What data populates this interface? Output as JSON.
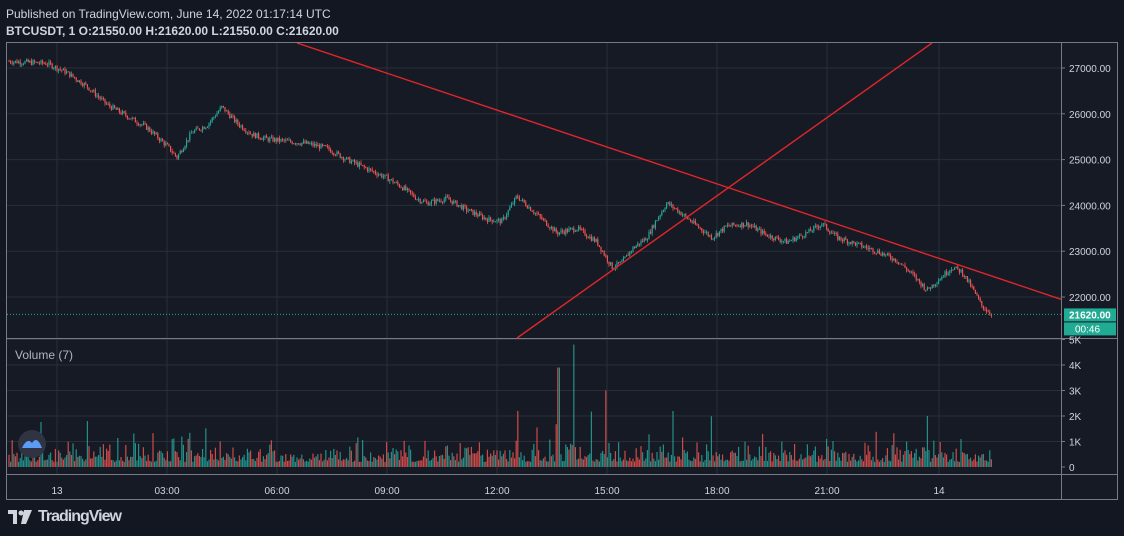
{
  "header": {
    "published": "Published on TradingView.com, June 14, 2022 01:17:14 UTC",
    "symbol_line": "BTCUSDT, 1 O:21550.00 H:21620.00 L:21550.00 C:21620.00"
  },
  "footer": {
    "brand": "TradingView"
  },
  "colors": {
    "up": "#26a69a",
    "down": "#ef5350",
    "trendline": "#e0262a",
    "price_tag": "#22ab94",
    "grid": "#2a2e39",
    "background": "#131722"
  },
  "chart_data": [
    {
      "type": "candlestick",
      "title": "",
      "interval": "1",
      "symbol": "BTCUSDT",
      "x_ticks": [
        "13",
        "03:00",
        "06:00",
        "09:00",
        "12:00",
        "15:00",
        "18:00",
        "21:00",
        "14"
      ],
      "y_ticks": [
        "27000.00",
        "26000.00",
        "25000.00",
        "24000.00",
        "23000.00",
        "22000.00"
      ],
      "ylim": [
        21350,
        27600
      ],
      "last_price": "21620.00",
      "countdown": "00:46",
      "close_path": [
        [
          0,
          27150
        ],
        [
          40,
          27100
        ],
        [
          60,
          26900
        ],
        [
          80,
          26600
        ],
        [
          100,
          26200
        ],
        [
          120,
          25950
        ],
        [
          140,
          25700
        ],
        [
          160,
          25300
        ],
        [
          170,
          25050
        ],
        [
          185,
          25600
        ],
        [
          200,
          25750
        ],
        [
          215,
          26150
        ],
        [
          230,
          25800
        ],
        [
          245,
          25550
        ],
        [
          260,
          25450
        ],
        [
          280,
          25400
        ],
        [
          300,
          25350
        ],
        [
          320,
          25250
        ],
        [
          340,
          25000
        ],
        [
          360,
          24800
        ],
        [
          380,
          24600
        ],
        [
          395,
          24400
        ],
        [
          410,
          24150
        ],
        [
          420,
          24050
        ],
        [
          440,
          24150
        ],
        [
          460,
          23900
        ],
        [
          480,
          23700
        ],
        [
          495,
          23650
        ],
        [
          510,
          24200
        ],
        [
          530,
          23800
        ],
        [
          550,
          23400
        ],
        [
          570,
          23500
        ],
        [
          590,
          23200
        ],
        [
          605,
          22650
        ],
        [
          615,
          22750
        ],
        [
          625,
          23050
        ],
        [
          640,
          23300
        ],
        [
          650,
          23700
        ],
        [
          660,
          24050
        ],
        [
          670,
          23900
        ],
        [
          690,
          23550
        ],
        [
          705,
          23300
        ],
        [
          720,
          23550
        ],
        [
          740,
          23600
        ],
        [
          760,
          23350
        ],
        [
          780,
          23200
        ],
        [
          800,
          23400
        ],
        [
          815,
          23600
        ],
        [
          830,
          23300
        ],
        [
          850,
          23150
        ],
        [
          870,
          23000
        ],
        [
          890,
          22800
        ],
        [
          905,
          22500
        ],
        [
          920,
          22150
        ],
        [
          930,
          22350
        ],
        [
          945,
          22650
        ],
        [
          955,
          22550
        ],
        [
          965,
          22200
        ],
        [
          975,
          21800
        ],
        [
          985,
          21620
        ]
      ],
      "trendlines": [
        {
          "name": "descending",
          "start_time_min": 170,
          "start_price": 27500,
          "end_time_min": 1280,
          "end_price": 21950
        },
        {
          "name": "ascending",
          "start_time_min": 415,
          "start_price": 21150,
          "end_time_min": 1480,
          "end_price": 27600
        }
      ]
    },
    {
      "type": "bar",
      "title": "Volume (7)",
      "y_ticks": [
        "5K",
        "4K",
        "3K",
        "2K",
        "1K",
        "0"
      ],
      "ylim": [
        0,
        5000
      ],
      "spikes": [
        {
          "index_frac": 0.56,
          "value": 3900
        },
        {
          "index_frac": 0.575,
          "value": 4800
        },
        {
          "index_frac": 0.608,
          "value": 3000
        },
        {
          "index_frac": 0.518,
          "value": 2200
        },
        {
          "index_frac": 0.935,
          "value": 2000
        },
        {
          "index_frac": 0.082,
          "value": 1800
        }
      ],
      "baseline_range": [
        200,
        1200
      ]
    }
  ]
}
